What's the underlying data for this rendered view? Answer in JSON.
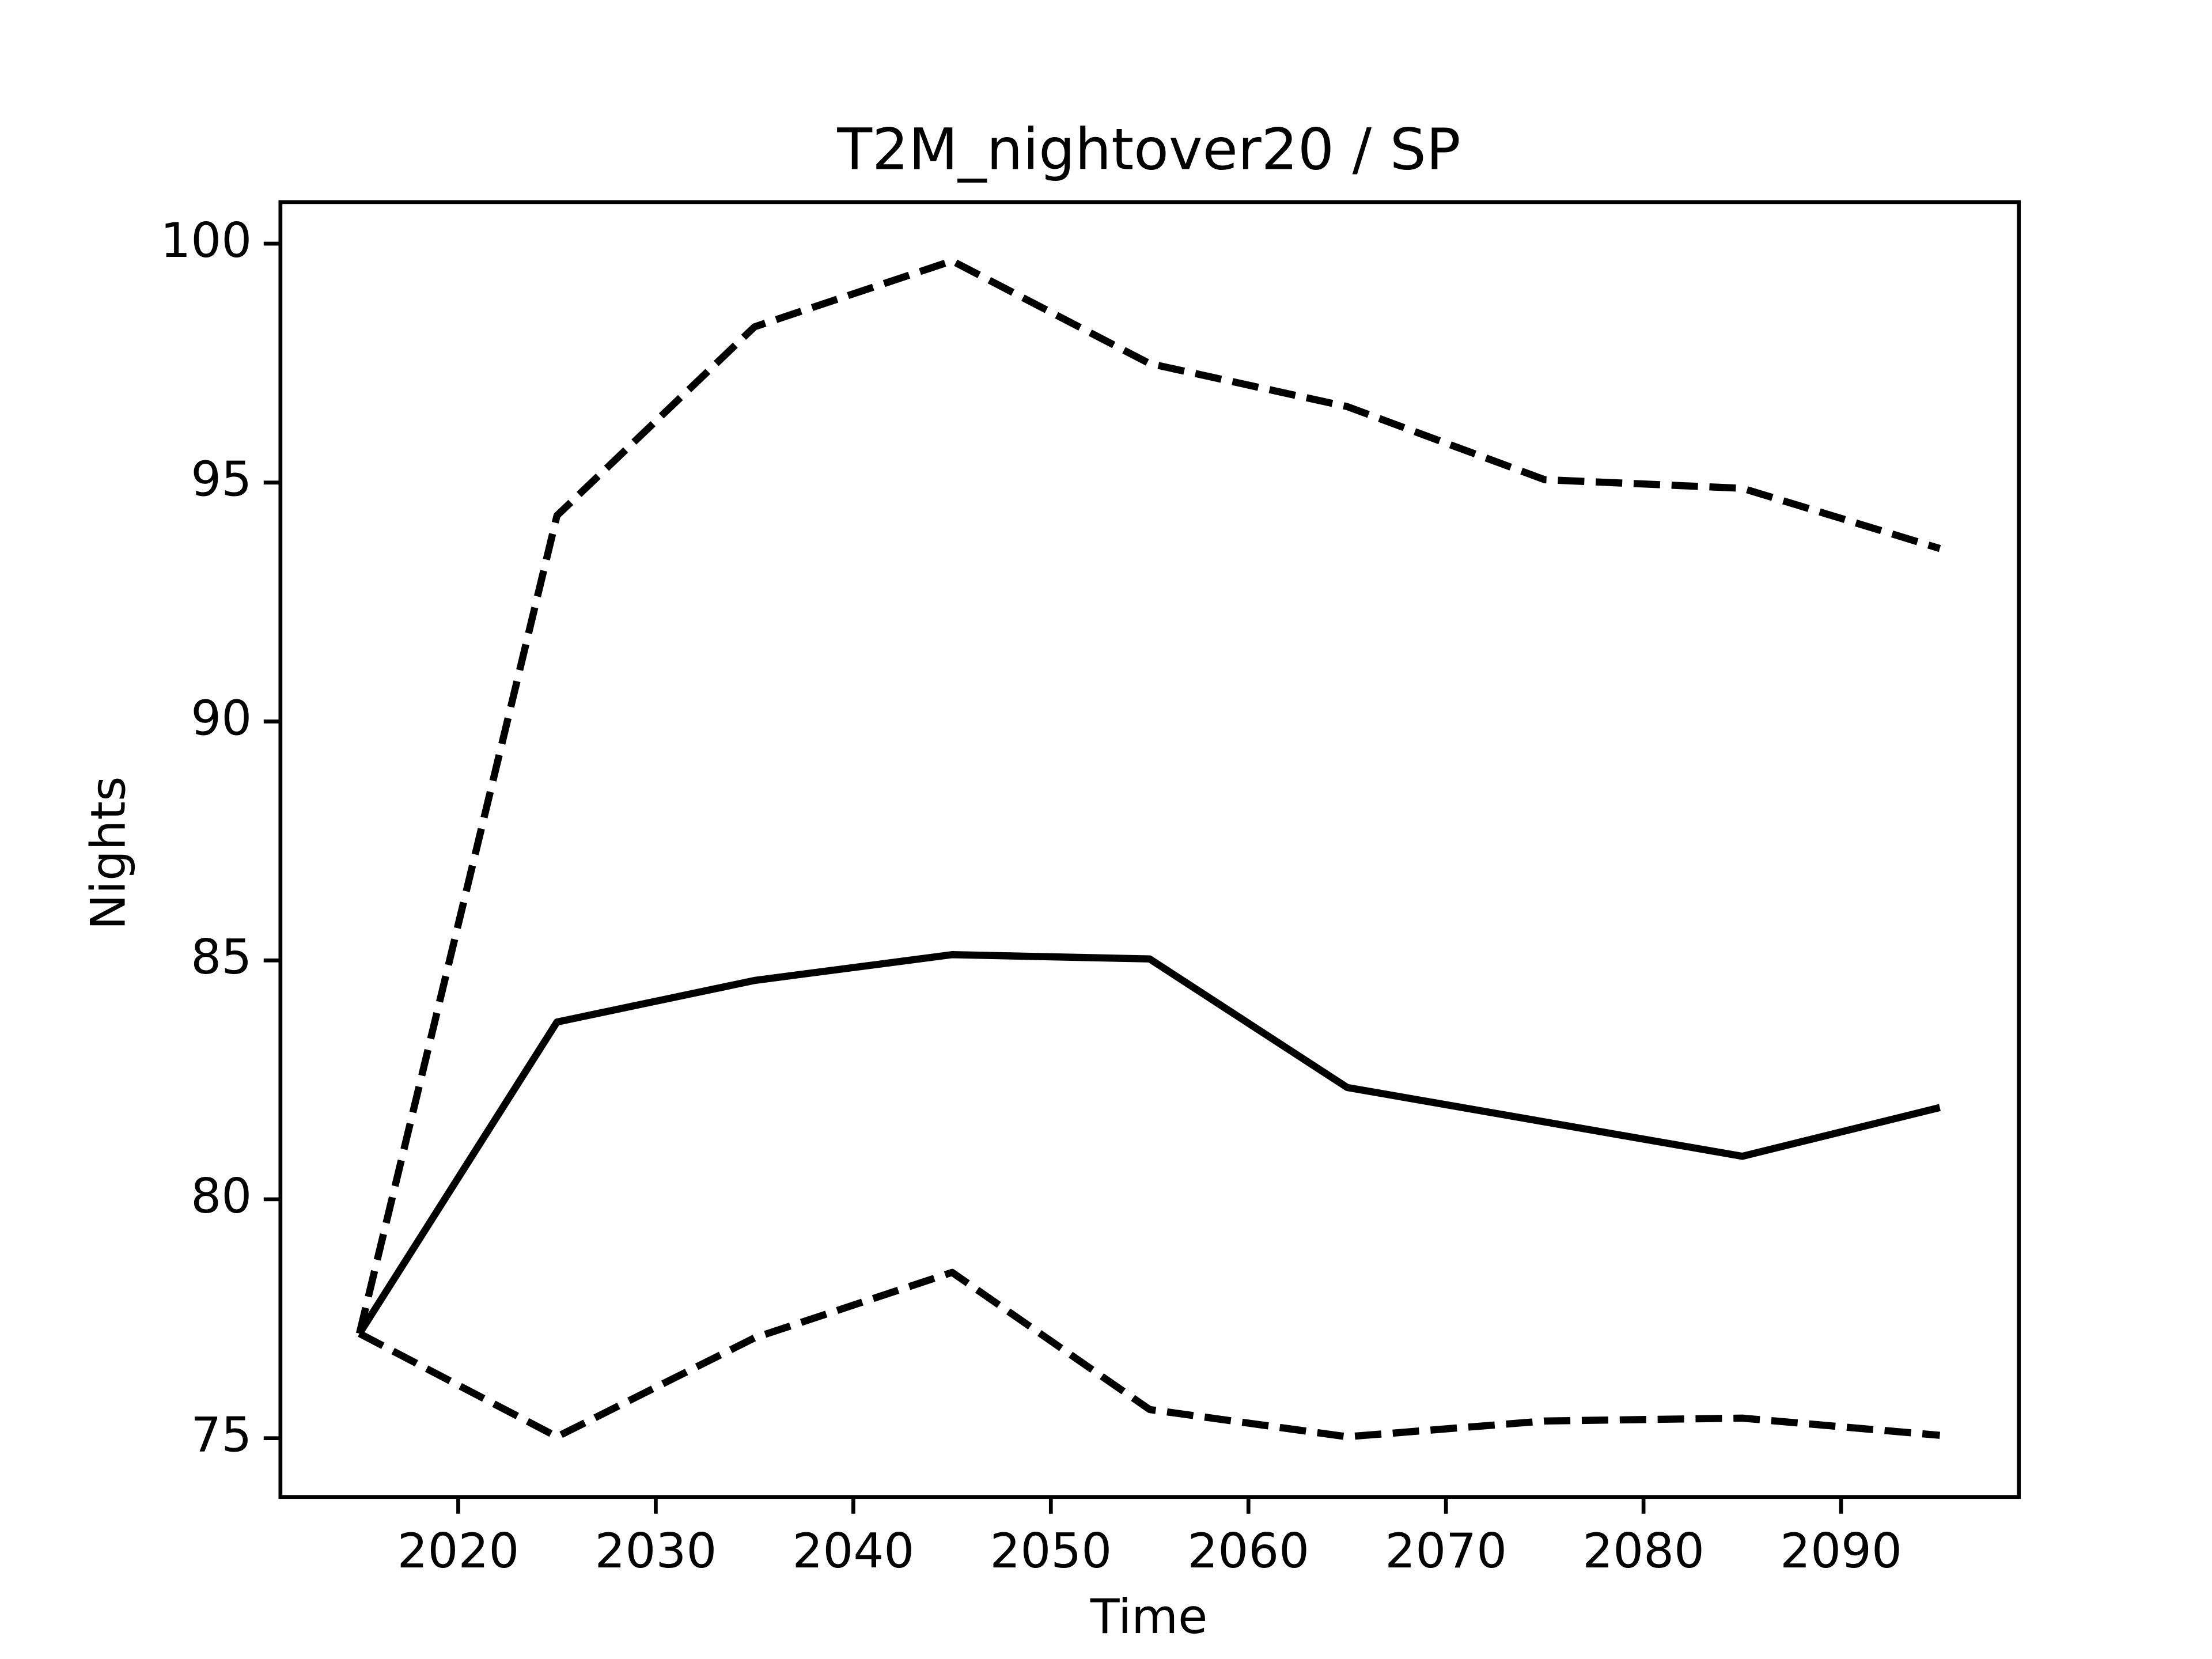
{
  "chart_data": {
    "type": "line",
    "title": "T2M_nightover20 / SP",
    "xlabel": "Time",
    "ylabel": "Nights",
    "x": [
      2015,
      2025,
      2035,
      2045,
      2055,
      2065,
      2075,
      2085,
      2095
    ],
    "series": [
      {
        "color": "#000000",
        "linestyle": "solid",
        "values": [
          77.19,
          83.71,
          84.58,
          85.12,
          85.03,
          82.34,
          81.62,
          80.9,
          81.92
        ]
      },
      {
        "color": "#000000",
        "linestyle": "dashed",
        "values": [
          77.19,
          94.31,
          98.26,
          99.64,
          97.49,
          96.59,
          95.06,
          94.88,
          93.62
        ]
      },
      {
        "color": "#000000",
        "linestyle": "dashed",
        "values": [
          77.19,
          75.03,
          77.1,
          78.47,
          75.6,
          75.03,
          75.36,
          75.42,
          75.06
        ]
      }
    ],
    "xlim": [
      2011,
      2099
    ],
    "xticks": [
      2020,
      2030,
      2040,
      2050,
      2060,
      2070,
      2080,
      2090
    ],
    "ylim": [
      73.77,
      100.87
    ],
    "yticks": [
      75,
      80,
      85,
      90,
      95,
      100
    ],
    "grid": false
  }
}
